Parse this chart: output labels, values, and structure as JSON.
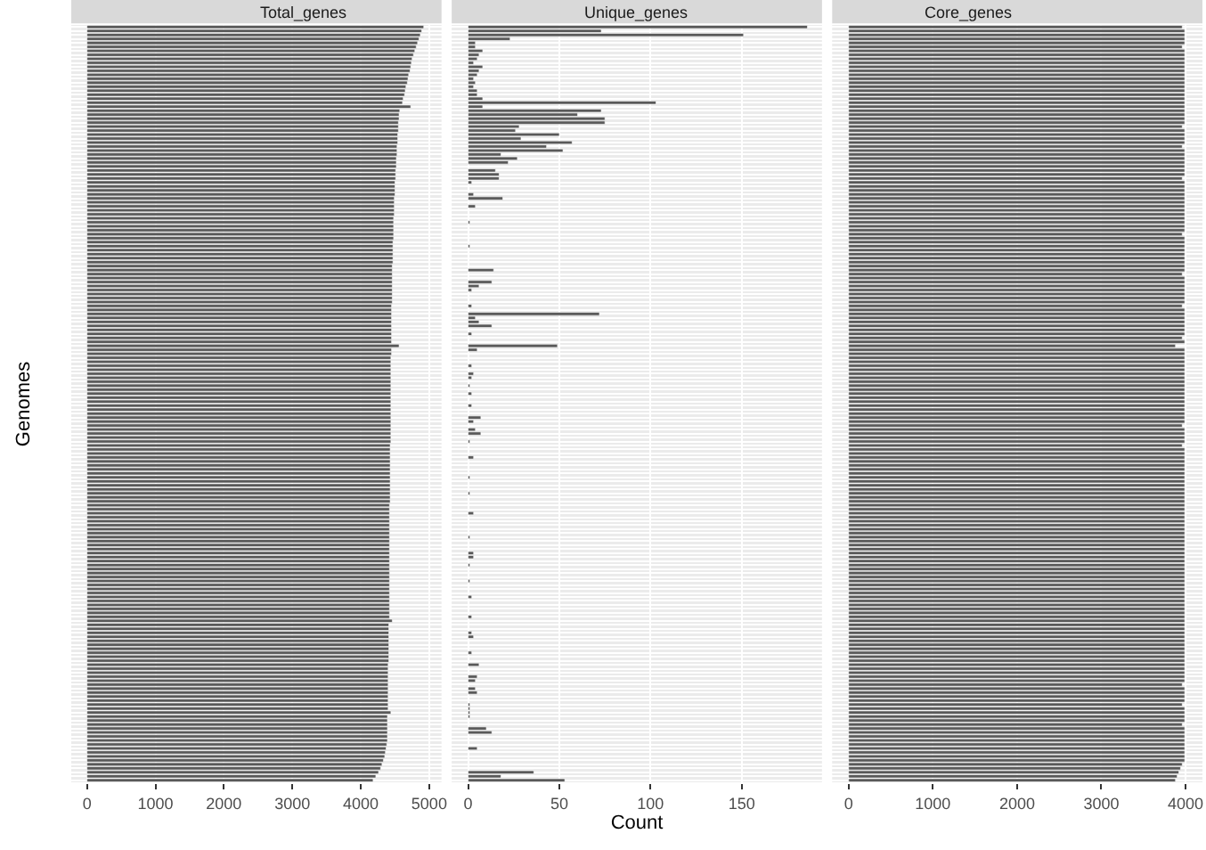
{
  "chart_data": [
    {
      "type": "bar",
      "orientation": "horizontal",
      "title": "Total_genes",
      "ylabel": "Genomes",
      "color": "#595959",
      "grid": true,
      "tick_labels": "x",
      "xlim": [
        -230,
        5180
      ],
      "xticks": [
        0,
        1000,
        2000,
        3000,
        4000,
        5000
      ],
      "categories": [
        null,
        null,
        null,
        null,
        null,
        null,
        null,
        null,
        null,
        null,
        null,
        null,
        null,
        null,
        null,
        null,
        null,
        null,
        null,
        null,
        null,
        null,
        null,
        null,
        null,
        null,
        null,
        null,
        null,
        null,
        null,
        null,
        null,
        null,
        null,
        null,
        null,
        null,
        null,
        null,
        null,
        null,
        null,
        null,
        null,
        null,
        null,
        null,
        null,
        null,
        null,
        null,
        null,
        null,
        null,
        null,
        null,
        null,
        null,
        null,
        null,
        null,
        null,
        null,
        null,
        null,
        null,
        null,
        null,
        null,
        null,
        null,
        null,
        null,
        null,
        null,
        null,
        null,
        null,
        null,
        null,
        null,
        null,
        null,
        null,
        null,
        null,
        null,
        null,
        null,
        null,
        null,
        null,
        null,
        null,
        null,
        null,
        null,
        null,
        null,
        null,
        null,
        null,
        null,
        null,
        null,
        null,
        null,
        null,
        null,
        null,
        null,
        null,
        null,
        null,
        null,
        null,
        null,
        null,
        null,
        null,
        null,
        null,
        null,
        null,
        null,
        null,
        null,
        null,
        null,
        null,
        null,
        null,
        null,
        null,
        null,
        null,
        null,
        null,
        null,
        null,
        null,
        null,
        null,
        null,
        null,
        null,
        null,
        null,
        null,
        null,
        null,
        null,
        null,
        null,
        null,
        null,
        null,
        null,
        null,
        null,
        null,
        null,
        null,
        null,
        null,
        null,
        null,
        null,
        null,
        null,
        null,
        null,
        null,
        null,
        null,
        null,
        null,
        null,
        null,
        null,
        null,
        null,
        null,
        null,
        null,
        null,
        null,
        null,
        null
      ],
      "values": [
        4920,
        4890,
        4870,
        4850,
        4830,
        4810,
        4790,
        4770,
        4750,
        4740,
        4730,
        4720,
        4700,
        4690,
        4680,
        4660,
        4650,
        4640,
        4620,
        4610,
        4730,
        4570,
        4560,
        4560,
        4550,
        4550,
        4550,
        4540,
        4540,
        4540,
        4530,
        4530,
        4530,
        4520,
        4520,
        4520,
        4510,
        4510,
        4510,
        4500,
        4500,
        4500,
        4500,
        4490,
        4490,
        4490,
        4490,
        4490,
        4480,
        4480,
        4480,
        4480,
        4480,
        4480,
        4470,
        4470,
        4470,
        4470,
        4470,
        4470,
        4460,
        4460,
        4460,
        4460,
        4460,
        4460,
        4460,
        4460,
        4460,
        4460,
        4450,
        4450,
        4450,
        4450,
        4450,
        4450,
        4450,
        4450,
        4450,
        4450,
        4560,
        4450,
        4450,
        4440,
        4440,
        4440,
        4440,
        4440,
        4440,
        4440,
        4440,
        4440,
        4440,
        4440,
        4440,
        4440,
        4440,
        4440,
        4440,
        4440,
        4440,
        4440,
        4440,
        4440,
        4440,
        4430,
        4430,
        4430,
        4430,
        4430,
        4430,
        4430,
        4430,
        4430,
        4430,
        4430,
        4430,
        4430,
        4430,
        4430,
        4420,
        4420,
        4420,
        4420,
        4420,
        4420,
        4420,
        4420,
        4420,
        4420,
        4420,
        4420,
        4420,
        4420,
        4420,
        4420,
        4420,
        4420,
        4420,
        4420,
        4420,
        4420,
        4420,
        4420,
        4420,
        4420,
        4420,
        4420,
        4420,
        4460,
        4410,
        4410,
        4410,
        4410,
        4410,
        4410,
        4410,
        4410,
        4410,
        4410,
        4400,
        4400,
        4400,
        4400,
        4400,
        4400,
        4400,
        4400,
        4400,
        4400,
        4400,
        4400,
        4440,
        4390,
        4390,
        4390,
        4390,
        4390,
        4390,
        4390,
        4380,
        4370,
        4360,
        4350,
        4330,
        4310,
        4290,
        4260,
        4220,
        4180
      ]
    },
    {
      "type": "bar",
      "orientation": "horizontal",
      "title": "Unique_genes",
      "xlabel": "Count",
      "color": "#595959",
      "grid": true,
      "tick_labels": "x",
      "xlim": [
        -9,
        194
      ],
      "xticks": [
        0,
        50,
        100,
        150
      ],
      "categories": [
        null,
        null,
        null,
        null,
        null,
        null,
        null,
        null,
        null,
        null,
        null,
        null,
        null,
        null,
        null,
        null,
        null,
        null,
        null,
        null,
        null,
        null,
        null,
        null,
        null,
        null,
        null,
        null,
        null,
        null,
        null,
        null,
        null,
        null,
        null,
        null,
        null,
        null,
        null,
        null,
        null,
        null,
        null,
        null,
        null,
        null,
        null,
        null,
        null,
        null,
        null,
        null,
        null,
        null,
        null,
        null,
        null,
        null,
        null,
        null,
        null,
        null,
        null,
        null,
        null,
        null,
        null,
        null,
        null,
        null,
        null,
        null,
        null,
        null,
        null,
        null,
        null,
        null,
        null,
        null,
        null,
        null,
        null,
        null,
        null,
        null,
        null,
        null,
        null,
        null,
        null,
        null,
        null,
        null,
        null,
        null,
        null,
        null,
        null,
        null,
        null,
        null,
        null,
        null,
        null,
        null,
        null,
        null,
        null,
        null,
        null,
        null,
        null,
        null,
        null,
        null,
        null,
        null,
        null,
        null,
        null,
        null,
        null,
        null,
        null,
        null,
        null,
        null,
        null,
        null,
        null,
        null,
        null,
        null,
        null,
        null,
        null,
        null,
        null,
        null,
        null,
        null,
        null,
        null,
        null,
        null,
        null,
        null,
        null,
        null,
        null,
        null,
        null,
        null,
        null,
        null,
        null,
        null,
        null,
        null,
        null,
        null,
        null,
        null,
        null,
        null,
        null,
        null,
        null,
        null,
        null,
        null,
        null,
        null,
        null,
        null,
        null,
        null,
        null,
        null,
        null,
        null,
        null,
        null,
        null,
        null,
        null,
        null,
        null,
        null
      ],
      "values": [
        186,
        73,
        151,
        23,
        4,
        4,
        8,
        6,
        5,
        3,
        8,
        6,
        5,
        3,
        4,
        3,
        5,
        5,
        8,
        103,
        8,
        73,
        60,
        75,
        75,
        28,
        26,
        50,
        29,
        57,
        43,
        52,
        18,
        27,
        22,
        0,
        15,
        17,
        17,
        2,
        0,
        0,
        3,
        19,
        0,
        4,
        0,
        0,
        0,
        1,
        0,
        0,
        0,
        0,
        0,
        1,
        0,
        0,
        0,
        0,
        0,
        14,
        0,
        0,
        13,
        6,
        2,
        0,
        0,
        0,
        2,
        0,
        72,
        4,
        6,
        13,
        0,
        2,
        0,
        0,
        49,
        5,
        0,
        0,
        0,
        2,
        0,
        3,
        2,
        0,
        1,
        0,
        2,
        0,
        0,
        2,
        0,
        0,
        7,
        3,
        0,
        4,
        7,
        0,
        1,
        0,
        0,
        0,
        3,
        0,
        0,
        0,
        0,
        1,
        0,
        0,
        0,
        1,
        0,
        0,
        0,
        0,
        3,
        0,
        0,
        0,
        0,
        0,
        1,
        0,
        0,
        0,
        3,
        3,
        0,
        1,
        0,
        0,
        0,
        1,
        0,
        0,
        0,
        2,
        0,
        0,
        0,
        0,
        2,
        0,
        0,
        0,
        2,
        3,
        0,
        0,
        0,
        2,
        0,
        0,
        6,
        0,
        0,
        5,
        4,
        0,
        4,
        5,
        0,
        0,
        1,
        1,
        1,
        1,
        0,
        0,
        10,
        13,
        0,
        0,
        0,
        5,
        0,
        0,
        0,
        0,
        0,
        36,
        18,
        53
      ]
    },
    {
      "type": "bar",
      "orientation": "horizontal",
      "title": "Core_genes",
      "color": "#595959",
      "grid": true,
      "tick_labels": "x",
      "xlim": [
        -195,
        4200
      ],
      "xticks": [
        0,
        1000,
        2000,
        3000,
        4000
      ],
      "categories": [
        null,
        null,
        null,
        null,
        null,
        null,
        null,
        null,
        null,
        null,
        null,
        null,
        null,
        null,
        null,
        null,
        null,
        null,
        null,
        null,
        null,
        null,
        null,
        null,
        null,
        null,
        null,
        null,
        null,
        null,
        null,
        null,
        null,
        null,
        null,
        null,
        null,
        null,
        null,
        null,
        null,
        null,
        null,
        null,
        null,
        null,
        null,
        null,
        null,
        null,
        null,
        null,
        null,
        null,
        null,
        null,
        null,
        null,
        null,
        null,
        null,
        null,
        null,
        null,
        null,
        null,
        null,
        null,
        null,
        null,
        null,
        null,
        null,
        null,
        null,
        null,
        null,
        null,
        null,
        null,
        null,
        null,
        null,
        null,
        null,
        null,
        null,
        null,
        null,
        null,
        null,
        null,
        null,
        null,
        null,
        null,
        null,
        null,
        null,
        null,
        null,
        null,
        null,
        null,
        null,
        null,
        null,
        null,
        null,
        null,
        null,
        null,
        null,
        null,
        null,
        null,
        null,
        null,
        null,
        null,
        null,
        null,
        null,
        null,
        null,
        null,
        null,
        null,
        null,
        null,
        null,
        null,
        null,
        null,
        null,
        null,
        null,
        null,
        null,
        null,
        null,
        null,
        null,
        null,
        null,
        null,
        null,
        null,
        null,
        null,
        null,
        null,
        null,
        null,
        null,
        null,
        null,
        null,
        null,
        null,
        null,
        null,
        null,
        null,
        null,
        null,
        null,
        null,
        null,
        null,
        null,
        null,
        null,
        null,
        null,
        null,
        null,
        null,
        null,
        null,
        null,
        null,
        null,
        null,
        null,
        null,
        null,
        null,
        null,
        null
      ],
      "values": [
        3960,
        3990,
        3990,
        3990,
        3990,
        3960,
        3990,
        3990,
        3990,
        3990,
        3990,
        3990,
        3990,
        3990,
        3990,
        3990,
        3990,
        3990,
        3990,
        3990,
        3990,
        3990,
        3990,
        3990,
        3990,
        3960,
        3990,
        3990,
        3990,
        3990,
        3960,
        3990,
        3990,
        3990,
        3990,
        3990,
        3990,
        3990,
        3960,
        3990,
        3990,
        3990,
        3990,
        3990,
        3990,
        3990,
        3990,
        3990,
        3990,
        3990,
        3990,
        3990,
        3960,
        3990,
        3990,
        3990,
        3990,
        3990,
        3990,
        3990,
        3990,
        3990,
        3960,
        3990,
        3990,
        3990,
        3990,
        3990,
        3990,
        3990,
        3960,
        3990,
        3990,
        3990,
        3990,
        3990,
        3990,
        3990,
        3960,
        3990,
        3880,
        3990,
        3990,
        3990,
        3990,
        3990,
        3990,
        3990,
        3990,
        3990,
        3990,
        3990,
        3990,
        3990,
        3990,
        3990,
        3990,
        3990,
        3990,
        3990,
        3960,
        3990,
        3990,
        3990,
        3990,
        3960,
        3990,
        3990,
        3990,
        3990,
        3990,
        3990,
        3990,
        3990,
        3990,
        3990,
        3990,
        3990,
        3990,
        3990,
        3990,
        3990,
        3990,
        3990,
        3990,
        3990,
        3990,
        3990,
        3990,
        3990,
        3990,
        3990,
        3990,
        3990,
        3990,
        3990,
        3990,
        3990,
        3990,
        3990,
        3990,
        3990,
        3990,
        3990,
        3990,
        3990,
        3990,
        3990,
        3990,
        3990,
        3990,
        3990,
        3990,
        3990,
        3990,
        3990,
        3990,
        3990,
        3990,
        3990,
        3990,
        3990,
        3990,
        3990,
        3990,
        3960,
        3990,
        3990,
        3990,
        3990,
        3960,
        3990,
        3990,
        3990,
        3990,
        3960,
        3990,
        3990,
        3990,
        3990,
        3990,
        3990,
        3990,
        3990,
        3990,
        3960,
        3940,
        3920,
        3900,
        3880
      ]
    }
  ]
}
